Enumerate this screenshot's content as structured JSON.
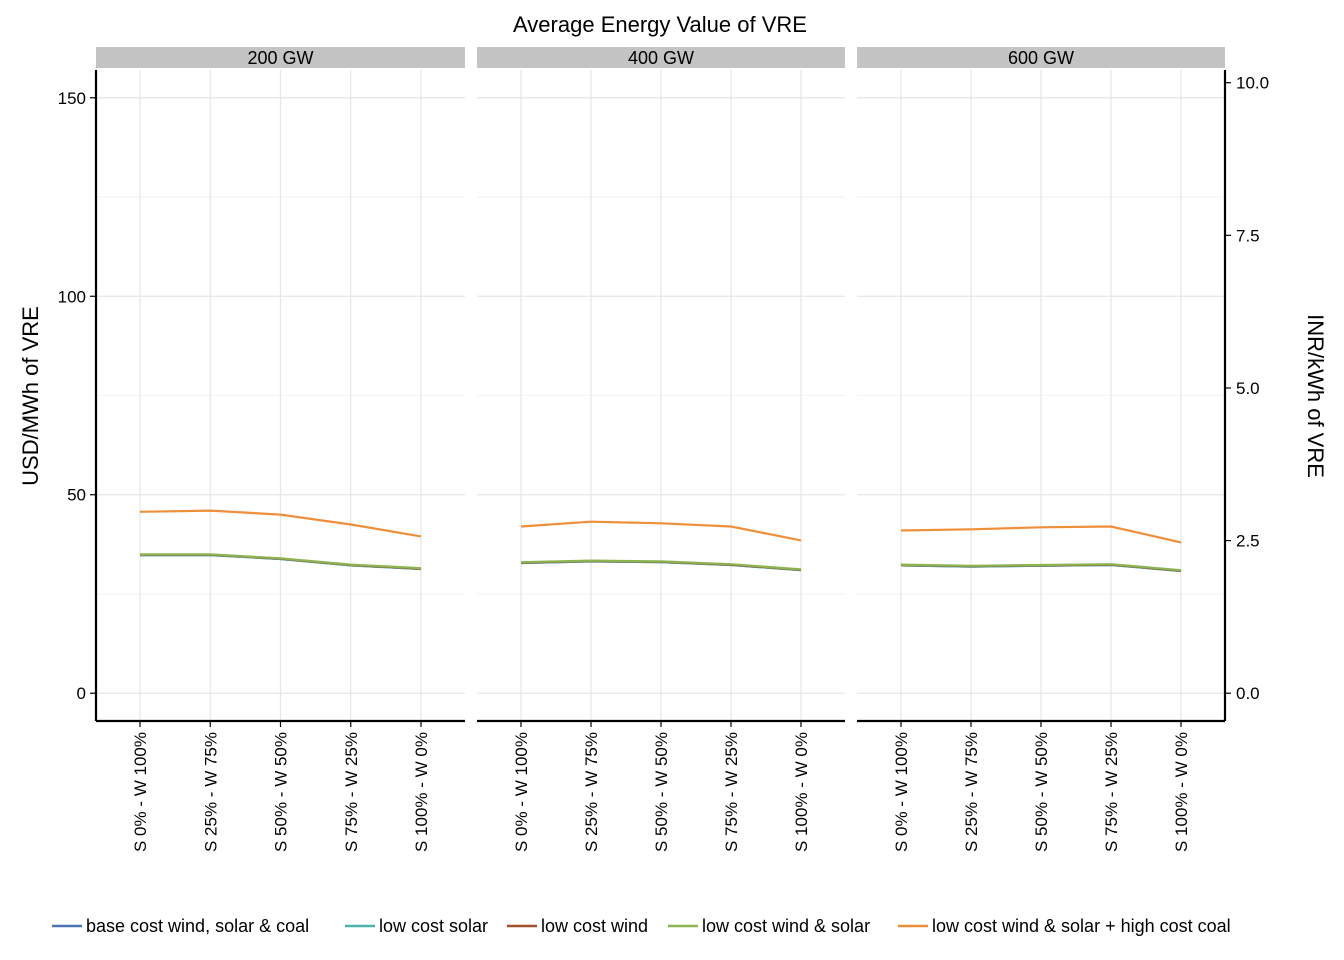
{
  "chart_data": {
    "type": "line",
    "title": "Average Energy Value of VRE",
    "ylabel": "USD/MWh of VRE",
    "ylabel_right": "INR/kWh of VRE",
    "ylim": [
      -7,
      157
    ],
    "yticks": [
      0,
      50,
      100,
      150
    ],
    "ytick_labels": [
      "0",
      "50",
      "100",
      "150"
    ],
    "right_axis_ticks": [
      0.0,
      2.5,
      5.0,
      7.5,
      10.0
    ],
    "right_axis_labels": [
      "0.0",
      "2.5",
      "5.0",
      "7.5",
      "10.0"
    ],
    "right_axis_usd_per_unit": 15.38,
    "categories": [
      "S 0% - W 100%",
      "S 25% - W 75%",
      "S 50% - W 50%",
      "S 75% - W 25%",
      "S 100% - W 0%"
    ],
    "grid": true,
    "legend_position": "bottom",
    "colors": {
      "base cost wind, solar & coal": "#4f72b5",
      "low cost solar": "#4fb3b0",
      "low cost wind": "#a0522d",
      "low cost wind & solar": "#8db54f",
      "low cost wind & solar + high cost coal": "#ef8f3a"
    },
    "legend": [
      "base cost wind, solar & coal",
      "low cost solar",
      "low cost wind",
      "low cost wind & solar",
      "low cost wind & solar + high cost coal"
    ],
    "panels": [
      {
        "label": "200 GW",
        "series": [
          {
            "name": "base cost wind, solar & coal",
            "values": [
              34.8,
              34.8,
              33.8,
              32.2,
              31.3
            ]
          },
          {
            "name": "low cost solar",
            "values": [
              34.8,
              34.8,
              33.8,
              32.2,
              31.3
            ]
          },
          {
            "name": "low cost wind",
            "values": [
              34.9,
              34.9,
              33.9,
              32.3,
              31.4
            ]
          },
          {
            "name": "low cost wind & solar",
            "values": [
              35.0,
              35.0,
              34.0,
              32.4,
              31.5
            ]
          },
          {
            "name": "low cost wind & solar + high cost coal",
            "values": [
              45.7,
              46.0,
              45.0,
              42.5,
              39.5
            ]
          }
        ]
      },
      {
        "label": "400 GW",
        "series": [
          {
            "name": "base cost wind, solar & coal",
            "values": [
              32.8,
              33.2,
              33.0,
              32.3,
              31.0
            ]
          },
          {
            "name": "low cost solar",
            "values": [
              32.8,
              33.2,
              33.0,
              32.3,
              31.0
            ]
          },
          {
            "name": "low cost wind",
            "values": [
              32.9,
              33.3,
              33.1,
              32.4,
              31.1
            ]
          },
          {
            "name": "low cost wind & solar",
            "values": [
              33.0,
              33.4,
              33.2,
              32.5,
              31.2
            ]
          },
          {
            "name": "low cost wind & solar + high cost coal",
            "values": [
              42.0,
              43.2,
              42.8,
              42.0,
              38.5
            ]
          }
        ]
      },
      {
        "label": "600 GW",
        "series": [
          {
            "name": "base cost wind, solar & coal",
            "values": [
              32.2,
              31.9,
              32.1,
              32.3,
              30.8
            ]
          },
          {
            "name": "low cost solar",
            "values": [
              32.2,
              31.9,
              32.1,
              32.3,
              30.8
            ]
          },
          {
            "name": "low cost wind",
            "values": [
              32.3,
              32.0,
              32.2,
              32.4,
              30.9
            ]
          },
          {
            "name": "low cost wind & solar",
            "values": [
              32.4,
              32.1,
              32.3,
              32.5,
              31.0
            ]
          },
          {
            "name": "low cost wind & solar + high cost coal",
            "values": [
              41.0,
              41.3,
              41.8,
              42.0,
              38.0
            ]
          }
        ]
      }
    ]
  }
}
